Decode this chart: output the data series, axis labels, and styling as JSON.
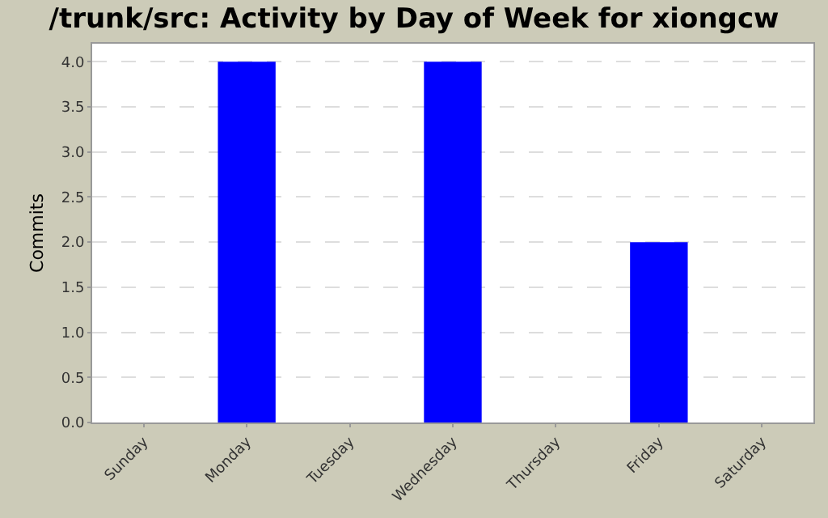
{
  "chart_data": {
    "type": "bar",
    "title": "/trunk/src: Activity by Day of Week for xiongcw",
    "ylabel": "Commits",
    "categories": [
      "Sunday",
      "Monday",
      "Tuesday",
      "Wednesday",
      "Thursday",
      "Friday",
      "Saturday"
    ],
    "values": [
      0,
      4,
      0,
      4,
      0,
      2,
      0
    ],
    "color": "#0000ff",
    "ylim": [
      0,
      4.2
    ],
    "yticks": [
      {
        "value": 0,
        "label": "0.0"
      },
      {
        "value": 0.5,
        "label": "0.5"
      },
      {
        "value": 1,
        "label": "1.0"
      },
      {
        "value": 1.5,
        "label": "1.5"
      },
      {
        "value": 2,
        "label": "2.0"
      },
      {
        "value": 2.5,
        "label": "2.5"
      },
      {
        "value": 3,
        "label": "3.0"
      },
      {
        "value": 3.5,
        "label": "3.5"
      },
      {
        "value": 4,
        "label": "4.0"
      }
    ],
    "grid": "y"
  }
}
